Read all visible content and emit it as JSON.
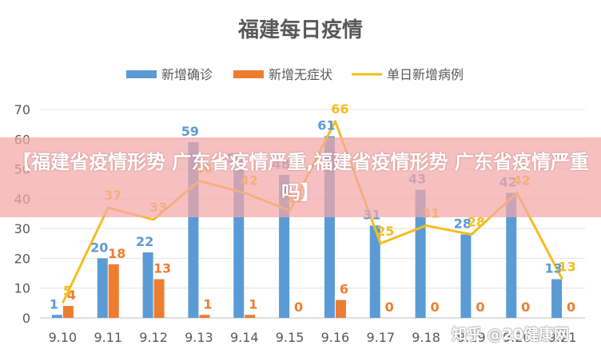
{
  "chart_data": {
    "type": "bar",
    "title": "福建每日疫情",
    "categories": [
      "9.10",
      "9.11",
      "9.12",
      "9.13",
      "9.14",
      "9.15",
      "9.16",
      "9.17",
      "9.18",
      "9.19",
      "9.20",
      "9.21"
    ],
    "series": [
      {
        "name": "新增确诊",
        "kind": "bar",
        "color": "#5b9bd5",
        "values": [
          1,
          20,
          22,
          59,
          50,
          48,
          61,
          31,
          43,
          28,
          42,
          13
        ]
      },
      {
        "name": "新增无症状",
        "kind": "bar",
        "color": "#ed7d31",
        "values": [
          4,
          18,
          13,
          1,
          1,
          0,
          6,
          0,
          0,
          0,
          0,
          0
        ]
      },
      {
        "name": "单日新增病例",
        "kind": "line",
        "color": "#f5bd1f",
        "values": [
          5,
          37,
          33,
          46,
          42,
          36,
          66,
          25,
          31,
          28,
          42,
          13
        ]
      }
    ],
    "ylim": [
      0,
      70
    ],
    "yticks": [
      0,
      10,
      20,
      30,
      40,
      50,
      60,
      70
    ],
    "grid": true,
    "legend": "top"
  },
  "banner": {
    "text": "【福建省疫情形势 广东省疫情严重,福建省疫情形势 广东省疫情严重吗】"
  },
  "watermark": {
    "text": "知乎 @20健康网"
  }
}
